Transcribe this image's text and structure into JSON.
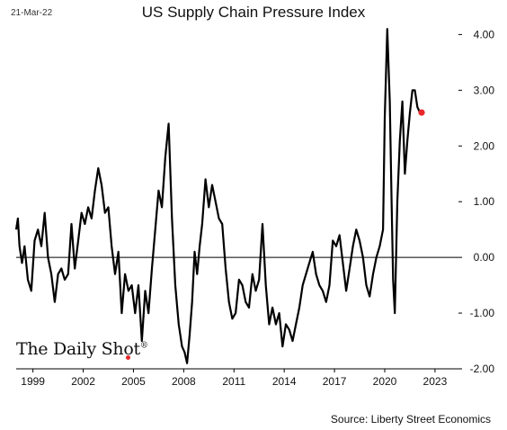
{
  "chart_data": {
    "type": "line",
    "title": "US Supply Chain Pressure Index",
    "date_stamp": "21-Mar-22",
    "source": "Source: Liberty Street Economics",
    "logo_text": "The Daily Shot",
    "logo_mark": "®",
    "xlabel": "",
    "ylabel": "",
    "xlim": [
      1998.0,
      2024.4
    ],
    "ylim": [
      -2.0,
      4.2
    ],
    "x_ticks": [
      {
        "value": 1999,
        "label": "1999"
      },
      {
        "value": 2002,
        "label": "2002"
      },
      {
        "value": 2005,
        "label": "2005"
      },
      {
        "value": 2008,
        "label": "2008"
      },
      {
        "value": 2011,
        "label": "2011"
      },
      {
        "value": 2014,
        "label": "2014"
      },
      {
        "value": 2017,
        "label": "2017"
      },
      {
        "value": 2020,
        "label": "2020"
      },
      {
        "value": 2023,
        "label": "2023"
      }
    ],
    "y_ticks": [
      {
        "value": 4.0,
        "label": "4.00"
      },
      {
        "value": 3.0,
        "label": "3.00"
      },
      {
        "value": 2.0,
        "label": "2.00"
      },
      {
        "value": 1.0,
        "label": "1.00"
      },
      {
        "value": 0.0,
        "label": "0.00"
      },
      {
        "value": -1.0,
        "label": "-1.00"
      },
      {
        "value": -2.0,
        "label": "-2.00"
      }
    ],
    "zero_line": true,
    "grid": false,
    "line_color": "#000000",
    "marker_color": "#e8282b",
    "series": [
      {
        "x": [
          1998.0,
          1998.1,
          1998.2,
          1998.35,
          1998.5,
          1998.7,
          1998.9,
          1999.1,
          1999.3,
          1999.5,
          1999.7,
          1999.9,
          2000.1,
          2000.3,
          2000.5,
          2000.7,
          2000.9,
          2001.1,
          2001.3,
          2001.5,
          2001.7,
          2001.9,
          2002.1,
          2002.3,
          2002.5,
          2002.7,
          2002.9,
          2003.1,
          2003.3,
          2003.5,
          2003.7,
          2003.9,
          2004.1,
          2004.3,
          2004.5,
          2004.7,
          2004.9,
          2005.1,
          2005.3,
          2005.5,
          2005.7,
          2005.9,
          2006.1,
          2006.3,
          2006.5,
          2006.7,
          2006.9,
          2007.1,
          2007.3,
          2007.5,
          2007.7,
          2007.9,
          2008.05,
          2008.2,
          2008.35,
          2008.5,
          2008.65,
          2008.8,
          2008.95,
          2009.1,
          2009.3,
          2009.5,
          2009.7,
          2009.9,
          2010.1,
          2010.3,
          2010.5,
          2010.7,
          2010.9,
          2011.1,
          2011.3,
          2011.5,
          2011.7,
          2011.9,
          2012.1,
          2012.3,
          2012.5,
          2012.7,
          2012.9,
          2013.1,
          2013.3,
          2013.5,
          2013.7,
          2013.9,
          2014.1,
          2014.3,
          2014.5,
          2014.7,
          2014.9,
          2015.1,
          2015.3,
          2015.5,
          2015.7,
          2015.9,
          2016.1,
          2016.3,
          2016.5,
          2016.7,
          2016.9,
          2017.1,
          2017.3,
          2017.5,
          2017.7,
          2017.9,
          2018.1,
          2018.3,
          2018.5,
          2018.7,
          2018.9,
          2019.1,
          2019.3,
          2019.5,
          2019.7,
          2019.9,
          2020.0,
          2020.15,
          2020.3,
          2020.4,
          2020.5,
          2020.6,
          2020.75,
          2020.9,
          2021.05,
          2021.2,
          2021.35,
          2021.5,
          2021.65,
          2021.8,
          2021.95,
          2022.1,
          2022.2
        ],
        "values": [
          0.5,
          0.7,
          0.2,
          -0.1,
          0.2,
          -0.4,
          -0.6,
          0.3,
          0.5,
          0.2,
          0.8,
          0.0,
          -0.3,
          -0.8,
          -0.3,
          -0.2,
          -0.4,
          -0.3,
          0.6,
          -0.2,
          0.3,
          0.8,
          0.6,
          0.9,
          0.7,
          1.2,
          1.6,
          1.3,
          0.8,
          0.9,
          0.2,
          -0.3,
          0.1,
          -1.0,
          -0.3,
          -0.6,
          -0.5,
          -1.0,
          -0.5,
          -1.5,
          -0.6,
          -1.0,
          -0.2,
          0.5,
          1.2,
          0.9,
          1.8,
          2.4,
          0.7,
          -0.5,
          -1.2,
          -1.6,
          -1.7,
          -1.9,
          -1.4,
          -0.8,
          0.1,
          -0.3,
          0.2,
          0.6,
          1.4,
          0.9,
          1.3,
          1.0,
          0.7,
          0.6,
          -0.2,
          -0.8,
          -1.1,
          -1.0,
          -0.4,
          -0.5,
          -0.8,
          -0.9,
          -0.3,
          -0.6,
          -0.4,
          0.6,
          -0.5,
          -1.2,
          -0.9,
          -1.2,
          -1.0,
          -1.6,
          -1.2,
          -1.3,
          -1.5,
          -1.2,
          -0.9,
          -0.5,
          -0.3,
          -0.1,
          0.1,
          -0.3,
          -0.5,
          -0.6,
          -0.8,
          -0.5,
          0.3,
          0.2,
          0.4,
          -0.1,
          -0.6,
          -0.2,
          0.2,
          0.5,
          0.3,
          0.0,
          -0.5,
          -0.7,
          -0.3,
          0.0,
          0.2,
          0.5,
          2.5,
          4.1,
          2.8,
          1.1,
          -0.4,
          -1.0,
          1.0,
          2.1,
          2.8,
          1.5,
          2.1,
          2.6,
          3.0,
          3.0,
          2.7,
          2.6,
          2.6
        ]
      }
    ]
  }
}
